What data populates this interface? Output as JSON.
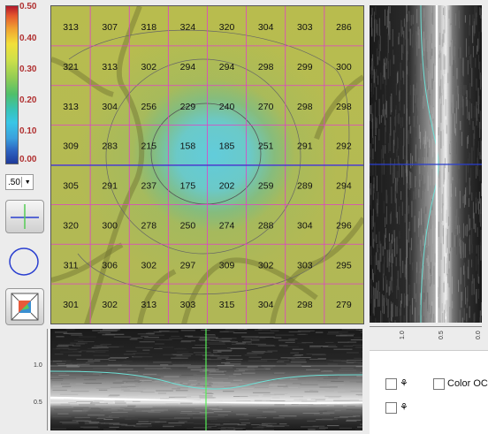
{
  "color_scale": {
    "ticks": [
      "0.50",
      "0.40",
      "0.30",
      "0.20",
      "0.10",
      "0.00"
    ]
  },
  "zoom": {
    "value": ".50"
  },
  "grid": {
    "rows": [
      [
        "313",
        "307",
        "318",
        "324",
        "320",
        "304",
        "303",
        "286"
      ],
      [
        "321",
        "313",
        "302",
        "294",
        "294",
        "298",
        "299",
        "300"
      ],
      [
        "313",
        "304",
        "256",
        "229",
        "240",
        "270",
        "298",
        "298"
      ],
      [
        "309",
        "283",
        "215",
        "158",
        "185",
        "251",
        "291",
        "292"
      ],
      [
        "305",
        "291",
        "237",
        "175",
        "202",
        "259",
        "289",
        "294"
      ],
      [
        "320",
        "300",
        "278",
        "250",
        "274",
        "288",
        "304",
        "296"
      ],
      [
        "311",
        "306",
        "302",
        "297",
        "309",
        "302",
        "303",
        "295"
      ],
      [
        "301",
        "302",
        "313",
        "303",
        "315",
        "304",
        "298",
        "279"
      ]
    ]
  },
  "side_scan": {
    "axis_ticks": [
      "1.0",
      "0.5",
      "0.0"
    ]
  },
  "bottom_scan": {
    "axis_ticks": [
      "1.0",
      "0.5"
    ]
  },
  "options": {
    "color_label": "Color OC"
  },
  "colors": {
    "grid_line": "#e040c8",
    "crosshair_h": "#2a3fd0",
    "crosshair_v": "#55ee55",
    "contour": "#555555",
    "layer_top": "#6fe0d6",
    "layer_bottom": "#ffffff"
  }
}
